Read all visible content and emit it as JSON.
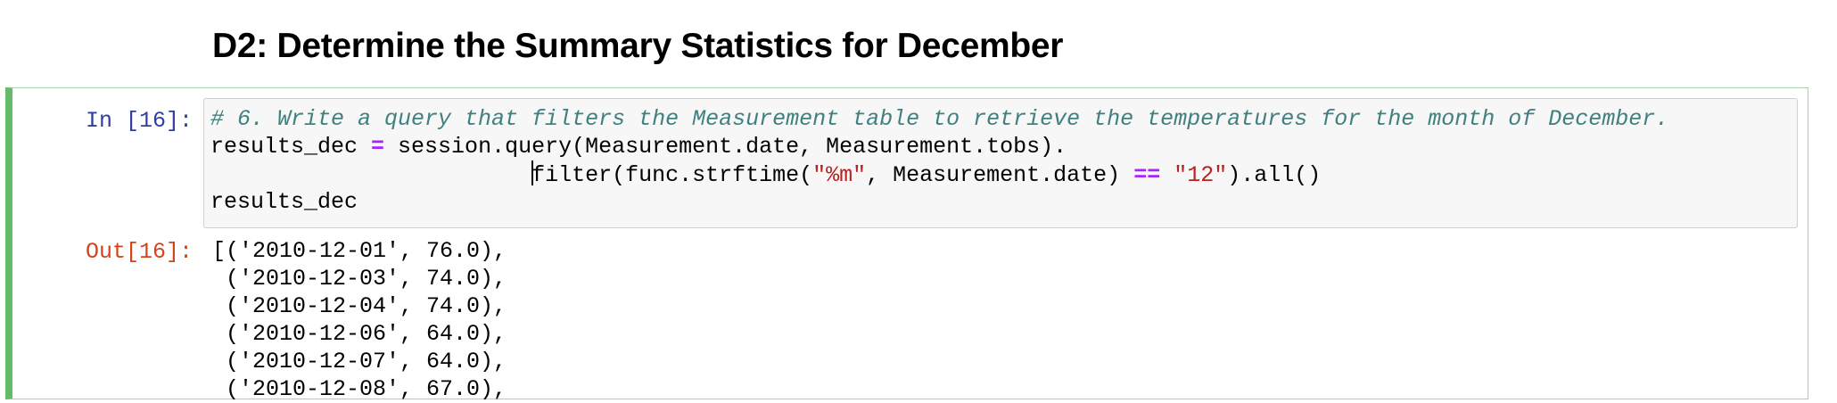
{
  "heading": "D2: Determine the Summary Statistics for December",
  "cell": {
    "in_prompt": "In [16]:",
    "out_prompt": "Out[16]:",
    "code": {
      "comment": "# 6. Write a query that filters the Measurement table to retrieve the temperatures for the month of December.",
      "line2_var": "results_dec ",
      "line2_op": "=",
      "line2_rest": " session.query(Measurement.date, Measurement.tobs).",
      "line3_indent": "                        ",
      "line3_call": "filter(func.strftime(",
      "line3_str1": "\"%m\"",
      "line3_mid": ", Measurement.date) ",
      "line3_op": "==",
      "line3_space": " ",
      "line3_str2": "\"12\"",
      "line3_end": ").all()",
      "line4": "results_dec"
    },
    "output_lines": [
      "[('2010-12-01', 76.0),",
      " ('2010-12-03', 74.0),",
      " ('2010-12-04', 74.0),",
      " ('2010-12-06', 64.0),",
      " ('2010-12-07', 64.0),",
      " ('2010-12-08', 67.0),"
    ]
  }
}
